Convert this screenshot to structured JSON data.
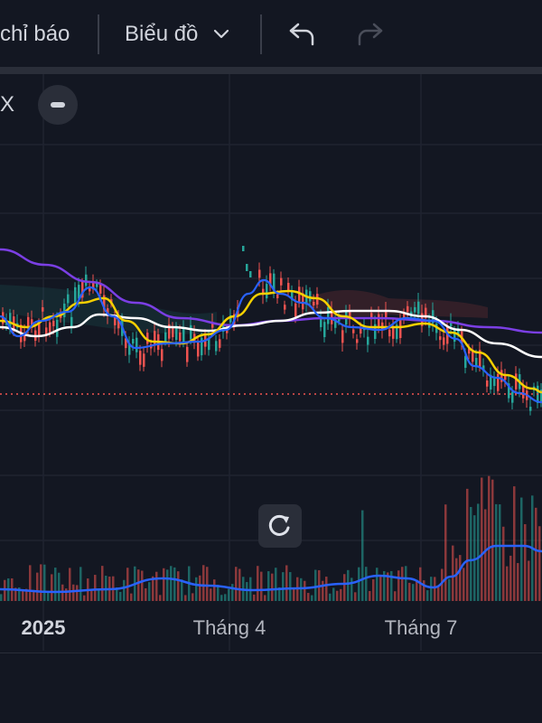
{
  "toolbar": {
    "indicators_label": "chỉ báo",
    "chart_type_label": "Biểu đồ"
  },
  "legend": {
    "close_label": "X"
  },
  "chart_data": {
    "type": "line",
    "title": "",
    "x_ticks": [
      "2025",
      "Tháng 4",
      "Tháng 7"
    ],
    "price_series": [
      {
        "name": "",
        "color": "#2962ff",
        "role": "ma-fast"
      },
      {
        "name": "",
        "color": "#f5d000",
        "role": "ma-medium"
      },
      {
        "name": "",
        "color": "#ffffff",
        "role": "ma-slow"
      },
      {
        "name": "",
        "color": "#7b3fe4",
        "role": "ma-long"
      }
    ],
    "candles": {
      "up_color": "#26a69a",
      "down_color": "#ef5350"
    },
    "volume": {
      "ma_color": "#2962ff"
    },
    "price_level_line": {
      "color": "#ef5350",
      "style": "dotted"
    },
    "grid": true
  }
}
